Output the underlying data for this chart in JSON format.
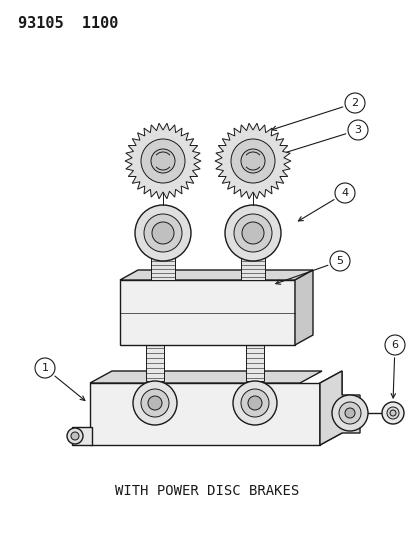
{
  "background_color": "#ffffff",
  "header_text": "93105  1100",
  "footer_text": "WITH POWER DISC BRAKES",
  "callout_numbers": [
    "1",
    "2",
    "3",
    "4",
    "5",
    "6"
  ],
  "line_color": "#1a1a1a",
  "text_color": "#1a1a1a",
  "header_fontsize": 11,
  "footer_fontsize": 10,
  "callout_fontsize": 8,
  "fig_width": 4.14,
  "fig_height": 5.33,
  "dpi": 100
}
